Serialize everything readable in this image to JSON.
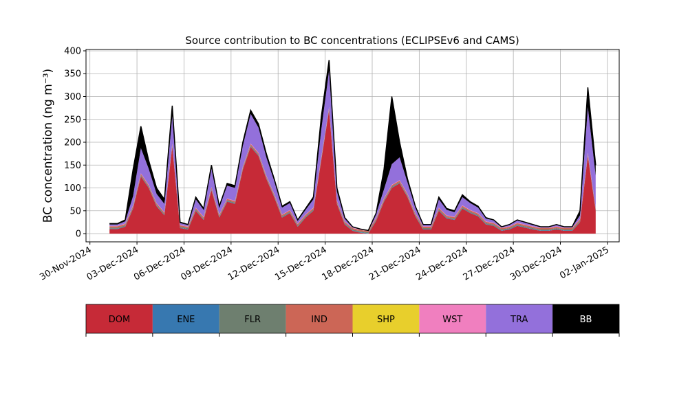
{
  "chart_data": {
    "type": "area",
    "stacked": true,
    "title": "Source contribution to BC concentrations (ECLIPSEv6 and CAMS)",
    "ylabel": "BC concentration (ng m⁻³)",
    "grid": true,
    "xlim": [
      "2024-11-29 18:00",
      "2025-01-02 18:00"
    ],
    "ylim": [
      -18,
      403
    ],
    "yticks": [
      0,
      50,
      100,
      150,
      200,
      250,
      300,
      350,
      400
    ],
    "xticks": [
      {
        "value": "2024-11-30 00:00",
        "label": "30-Nov-2024"
      },
      {
        "value": "2024-12-03 00:00",
        "label": "03-Dec-2024"
      },
      {
        "value": "2024-12-06 00:00",
        "label": "06-Dec-2024"
      },
      {
        "value": "2024-12-09 00:00",
        "label": "09-Dec-2024"
      },
      {
        "value": "2024-12-12 00:00",
        "label": "12-Dec-2024"
      },
      {
        "value": "2024-12-15 00:00",
        "label": "15-Dec-2024"
      },
      {
        "value": "2024-12-18 00:00",
        "label": "18-Dec-2024"
      },
      {
        "value": "2024-12-21 00:00",
        "label": "21-Dec-2024"
      },
      {
        "value": "2024-12-24 00:00",
        "label": "24-Dec-2024"
      },
      {
        "value": "2024-12-27 00:00",
        "label": "27-Dec-2024"
      },
      {
        "value": "2024-12-30 00:00",
        "label": "30-Dec-2024"
      },
      {
        "value": "2025-01-02 00:00",
        "label": "02-Jan-2025"
      }
    ],
    "x": [
      "2024-12-01 06:00",
      "2024-12-01 18:00",
      "2024-12-02 06:00",
      "2024-12-02 18:00",
      "2024-12-03 06:00",
      "2024-12-03 18:00",
      "2024-12-04 06:00",
      "2024-12-04 18:00",
      "2024-12-05 06:00",
      "2024-12-05 18:00",
      "2024-12-06 06:00",
      "2024-12-06 18:00",
      "2024-12-07 06:00",
      "2024-12-07 18:00",
      "2024-12-08 06:00",
      "2024-12-08 18:00",
      "2024-12-09 06:00",
      "2024-12-09 18:00",
      "2024-12-10 06:00",
      "2024-12-10 18:00",
      "2024-12-11 06:00",
      "2024-12-11 18:00",
      "2024-12-12 06:00",
      "2024-12-12 18:00",
      "2024-12-13 06:00",
      "2024-12-13 18:00",
      "2024-12-14 06:00",
      "2024-12-14 18:00",
      "2024-12-15 06:00",
      "2024-12-15 18:00",
      "2024-12-16 06:00",
      "2024-12-16 18:00",
      "2024-12-17 06:00",
      "2024-12-17 18:00",
      "2024-12-18 06:00",
      "2024-12-18 18:00",
      "2024-12-19 06:00",
      "2024-12-19 18:00",
      "2024-12-20 06:00",
      "2024-12-20 18:00",
      "2024-12-21 06:00",
      "2024-12-21 18:00",
      "2024-12-22 06:00",
      "2024-12-22 18:00",
      "2024-12-23 06:00",
      "2024-12-23 18:00",
      "2024-12-24 06:00",
      "2024-12-24 18:00",
      "2024-12-25 06:00",
      "2024-12-25 18:00",
      "2024-12-26 06:00",
      "2024-12-26 18:00",
      "2024-12-27 06:00",
      "2024-12-27 18:00",
      "2024-12-28 06:00",
      "2024-12-28 18:00",
      "2024-12-29 06:00",
      "2024-12-29 18:00",
      "2024-12-30 06:00",
      "2024-12-30 18:00",
      "2024-12-31 06:00",
      "2024-12-31 18:00",
      "2025-01-01 06:00"
    ],
    "series": [
      {
        "name": "DOM",
        "color": "#c62a37",
        "values": [
          10,
          10,
          15,
          55,
          125,
          100,
          60,
          40,
          190,
          12,
          9,
          50,
          30,
          95,
          35,
          70,
          65,
          140,
          190,
          170,
          120,
          80,
          35,
          45,
          15,
          35,
          50,
          160,
          270,
          65,
          20,
          6,
          2,
          0,
          28,
          70,
          100,
          110,
          80,
          38,
          9,
          9,
          50,
          33,
          30,
          55,
          45,
          38,
          20,
          17,
          6,
          9,
          17,
          13,
          9,
          6,
          6,
          9,
          6,
          6,
          25,
          170,
          50
        ]
      },
      {
        "name": "ENE",
        "color": "#3778b0",
        "values": [
          1,
          1,
          1,
          1,
          1,
          1,
          1,
          1,
          1,
          1,
          1,
          1,
          1,
          1,
          1,
          1,
          1,
          1,
          1,
          1,
          1,
          1,
          1,
          1,
          1,
          1,
          1,
          1,
          1,
          1,
          1,
          1,
          1,
          1,
          1,
          1,
          1,
          1,
          1,
          1,
          1,
          1,
          1,
          1,
          1,
          1,
          1,
          1,
          1,
          1,
          1,
          1,
          1,
          1,
          1,
          1,
          1,
          1,
          1,
          1,
          1,
          1,
          1
        ]
      },
      {
        "name": "FLR",
        "color": "#6e7f6f",
        "values": [
          2,
          2,
          2,
          2,
          2,
          2,
          2,
          2,
          2,
          2,
          2,
          2,
          2,
          2,
          2,
          2,
          2,
          2,
          2,
          2,
          2,
          2,
          2,
          2,
          2,
          2,
          2,
          2,
          2,
          2,
          2,
          2,
          2,
          2,
          2,
          2,
          2,
          2,
          2,
          2,
          2,
          2,
          2,
          2,
          2,
          2,
          2,
          2,
          2,
          2,
          2,
          2,
          2,
          2,
          2,
          2,
          2,
          2,
          2,
          2,
          2,
          2,
          2
        ]
      },
      {
        "name": "IND",
        "color": "#cc6656",
        "values": [
          3,
          3,
          3,
          3,
          3,
          3,
          3,
          3,
          3,
          3,
          3,
          3,
          3,
          3,
          3,
          3,
          3,
          3,
          3,
          3,
          3,
          3,
          3,
          3,
          3,
          3,
          3,
          3,
          3,
          3,
          3,
          3,
          3,
          3,
          3,
          3,
          3,
          3,
          3,
          3,
          3,
          3,
          3,
          3,
          3,
          3,
          3,
          3,
          3,
          3,
          3,
          3,
          3,
          3,
          3,
          3,
          3,
          3,
          3,
          3,
          3,
          3,
          3
        ]
      },
      {
        "name": "SHP",
        "color": "#e8cf2c",
        "values": [
          0,
          0,
          0,
          0,
          0,
          0,
          0,
          0,
          0,
          0,
          0,
          0,
          0,
          0,
          0,
          0,
          0,
          0,
          0,
          0,
          0,
          0,
          0,
          0,
          0,
          0,
          0,
          0,
          0,
          0,
          0,
          0,
          0,
          0,
          0,
          0,
          0,
          0,
          0,
          0,
          0,
          0,
          0,
          0,
          0,
          0,
          0,
          0,
          0,
          0,
          0,
          0,
          0,
          0,
          0,
          0,
          0,
          0,
          0,
          0,
          0,
          0,
          0
        ]
      },
      {
        "name": "WST",
        "color": "#f07fbf",
        "values": [
          1,
          1,
          1,
          1,
          1,
          1,
          1,
          1,
          1,
          1,
          1,
          1,
          1,
          1,
          1,
          1,
          1,
          1,
          1,
          1,
          1,
          1,
          1,
          1,
          1,
          1,
          1,
          1,
          1,
          1,
          1,
          1,
          1,
          1,
          1,
          1,
          1,
          1,
          1,
          1,
          1,
          1,
          1,
          1,
          1,
          1,
          1,
          1,
          1,
          1,
          1,
          1,
          1,
          1,
          1,
          1,
          1,
          1,
          1,
          1,
          1,
          1,
          1
        ]
      },
      {
        "name": "TRA",
        "color": "#9370db",
        "values": [
          3,
          3,
          5,
          20,
          55,
          35,
          20,
          18,
          60,
          4,
          3,
          18,
          15,
          40,
          15,
          28,
          28,
          45,
          65,
          55,
          40,
          28,
          15,
          15,
          6,
          10,
          18,
          60,
          80,
          20,
          6,
          1,
          0,
          0,
          8,
          20,
          45,
          50,
          25,
          12,
          3,
          3,
          18,
          12,
          10,
          18,
          15,
          12,
          6,
          5,
          1,
          3,
          5,
          4,
          3,
          1,
          1,
          3,
          1,
          1,
          8,
          100,
          70
        ]
      },
      {
        "name": "BB",
        "color": "#000000",
        "values": [
          2,
          2,
          3,
          58,
          48,
          18,
          13,
          10,
          23,
          2,
          1,
          5,
          3,
          8,
          3,
          5,
          5,
          8,
          8,
          8,
          8,
          5,
          3,
          3,
          2,
          3,
          5,
          28,
          23,
          8,
          2,
          1,
          1,
          0,
          2,
          43,
          148,
          33,
          8,
          3,
          1,
          1,
          5,
          3,
          3,
          5,
          3,
          3,
          2,
          1,
          1,
          1,
          1,
          1,
          1,
          1,
          1,
          1,
          1,
          1,
          10,
          43,
          23
        ]
      }
    ]
  }
}
